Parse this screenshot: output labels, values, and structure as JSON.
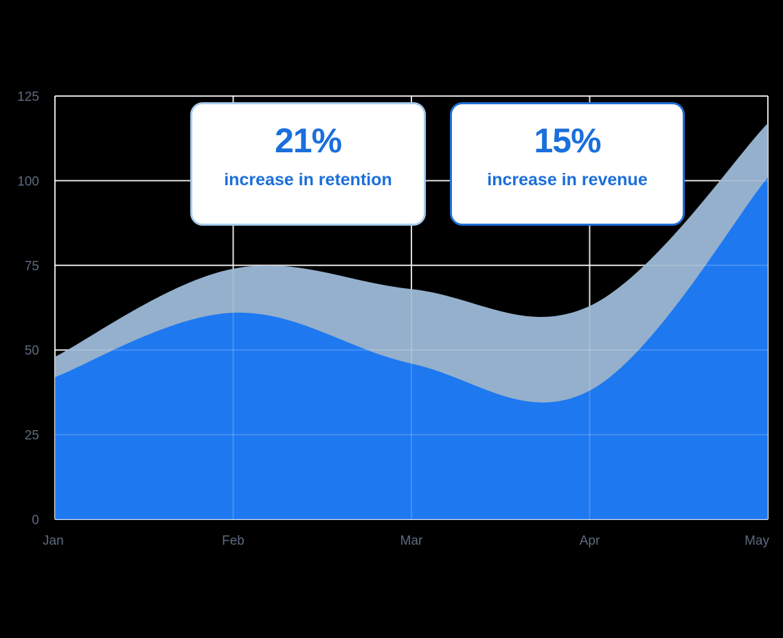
{
  "chart_data": {
    "type": "area",
    "categories": [
      "Jan",
      "Feb",
      "Mar",
      "Apr",
      "May"
    ],
    "series": [
      {
        "values": [
          48,
          74,
          68,
          63,
          117
        ],
        "color": "#94b0cc"
      },
      {
        "values": [
          42,
          61,
          46,
          38,
          101
        ],
        "color": "#1e78f0"
      }
    ],
    "yticks": [
      0,
      25,
      50,
      75,
      100,
      125
    ],
    "ylim": [
      0,
      125
    ],
    "grid": true,
    "title": "",
    "xlabel": "",
    "ylabel": ""
  },
  "cards": [
    {
      "value": "21%",
      "label": "increase in retention"
    },
    {
      "value": "15%",
      "label": "increase in revenue"
    }
  ]
}
